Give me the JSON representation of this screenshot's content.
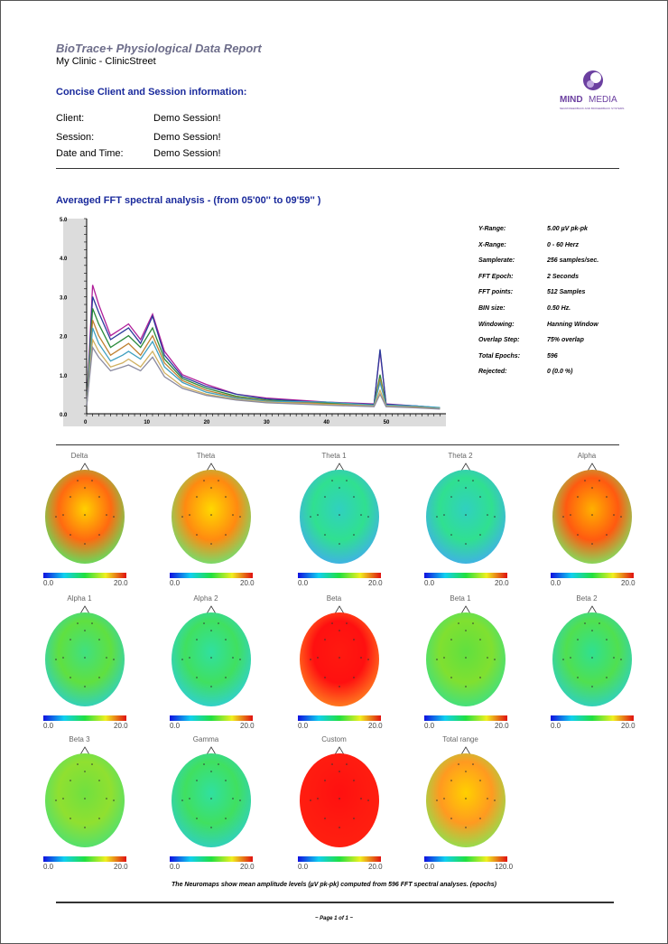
{
  "header": {
    "report_title": "BioTrace+ Physiological Data Report",
    "clinic": "My Clinic - ClinicStreet",
    "section_title": "Concise Client and Session information:"
  },
  "logo": {
    "text_bold": "MIND",
    "text_light": "MEDIA",
    "tagline": "NEUROFEEDBACK AND BIOFEEDBACK SYSTEMS",
    "color": "#6b3fa0"
  },
  "session_info": [
    {
      "label": "Client:",
      "value": "Demo Session!"
    },
    {
      "label": "Session:",
      "value": "Demo Session!"
    },
    {
      "label": "Date and Time:",
      "value": "Demo Session!"
    }
  ],
  "fft": {
    "title": "Averaged FFT spectral analysis - (from  05'00''  to  09'59'' )",
    "stats": [
      {
        "label": "Y-Range:",
        "value": "5.00 µV pk-pk"
      },
      {
        "label": "X-Range:",
        "value": "0 - 60 Herz"
      },
      {
        "label": "Samplerate:",
        "value": "256 samples/sec."
      },
      {
        "label": "FFT Epoch:",
        "value": "2 Seconds"
      },
      {
        "label": "FFT points:",
        "value": "512 Samples"
      },
      {
        "label": "BIN size:",
        "value": "0.50 Hz."
      },
      {
        "label": "Windowing:",
        "value": "Hanning  Window"
      },
      {
        "label": "Overlap Step:",
        "value": "75% overlap"
      },
      {
        "label": "Total Epochs:",
        "value": "596"
      },
      {
        "label": "Rejected:",
        "value": "0  (0.0 %)"
      }
    ]
  },
  "chart_data": {
    "type": "line",
    "xlim": [
      0,
      60
    ],
    "ylim": [
      0,
      5
    ],
    "y_ticks": [
      "0.0",
      "1.0",
      "2.0",
      "3.0",
      "4.0",
      "5.0"
    ],
    "x_ticks": [
      "0",
      "10",
      "20",
      "30",
      "40",
      "50"
    ],
    "series": [
      {
        "color": "#b0209a",
        "values": [
          [
            0,
            0.2
          ],
          [
            1,
            3.3
          ],
          [
            2,
            2.8
          ],
          [
            4,
            2.0
          ],
          [
            6,
            2.2
          ],
          [
            7,
            2.3
          ],
          [
            9,
            1.9
          ],
          [
            11,
            2.55
          ],
          [
            13,
            1.6
          ],
          [
            16,
            1.0
          ],
          [
            20,
            0.75
          ],
          [
            25,
            0.5
          ],
          [
            30,
            0.4
          ],
          [
            40,
            0.3
          ],
          [
            48,
            0.25
          ],
          [
            49,
            1.6
          ],
          [
            50,
            0.25
          ],
          [
            55,
            0.2
          ],
          [
            59,
            0.15
          ]
        ]
      },
      {
        "color": "#2a3a9a",
        "values": [
          [
            0,
            0.2
          ],
          [
            1,
            3.0
          ],
          [
            2,
            2.6
          ],
          [
            4,
            1.9
          ],
          [
            6,
            2.1
          ],
          [
            7,
            2.2
          ],
          [
            9,
            1.8
          ],
          [
            11,
            2.5
          ],
          [
            13,
            1.5
          ],
          [
            16,
            0.95
          ],
          [
            20,
            0.7
          ],
          [
            25,
            0.5
          ],
          [
            30,
            0.38
          ],
          [
            40,
            0.28
          ],
          [
            48,
            0.24
          ],
          [
            49,
            1.65
          ],
          [
            50,
            0.24
          ],
          [
            55,
            0.2
          ],
          [
            59,
            0.15
          ]
        ]
      },
      {
        "color": "#2a8a3a",
        "values": [
          [
            0,
            0.2
          ],
          [
            1,
            2.7
          ],
          [
            2,
            2.3
          ],
          [
            4,
            1.7
          ],
          [
            6,
            1.9
          ],
          [
            7,
            2.0
          ],
          [
            9,
            1.7
          ],
          [
            11,
            2.2
          ],
          [
            13,
            1.4
          ],
          [
            16,
            0.9
          ],
          [
            20,
            0.65
          ],
          [
            25,
            0.45
          ],
          [
            30,
            0.35
          ],
          [
            40,
            0.27
          ],
          [
            48,
            0.22
          ],
          [
            49,
            1.0
          ],
          [
            50,
            0.22
          ],
          [
            55,
            0.18
          ],
          [
            59,
            0.14
          ]
        ]
      },
      {
        "color": "#c08030",
        "values": [
          [
            0,
            0.2
          ],
          [
            1,
            2.4
          ],
          [
            2,
            2.0
          ],
          [
            4,
            1.5
          ],
          [
            6,
            1.7
          ],
          [
            7,
            1.8
          ],
          [
            9,
            1.5
          ],
          [
            11,
            2.0
          ],
          [
            13,
            1.3
          ],
          [
            16,
            0.85
          ],
          [
            20,
            0.6
          ],
          [
            25,
            0.42
          ],
          [
            30,
            0.33
          ],
          [
            40,
            0.25
          ],
          [
            48,
            0.2
          ],
          [
            49,
            0.9
          ],
          [
            50,
            0.2
          ],
          [
            55,
            0.17
          ],
          [
            59,
            0.13
          ]
        ]
      },
      {
        "color": "#40a0c0",
        "values": [
          [
            0,
            0.2
          ],
          [
            1,
            2.2
          ],
          [
            2,
            1.8
          ],
          [
            4,
            1.35
          ],
          [
            6,
            1.5
          ],
          [
            7,
            1.6
          ],
          [
            9,
            1.4
          ],
          [
            11,
            1.85
          ],
          [
            13,
            1.2
          ],
          [
            16,
            0.8
          ],
          [
            20,
            0.55
          ],
          [
            25,
            0.4
          ],
          [
            30,
            0.32
          ],
          [
            40,
            0.3
          ],
          [
            48,
            0.22
          ],
          [
            49,
            0.8
          ],
          [
            50,
            0.22
          ],
          [
            55,
            0.2
          ],
          [
            59,
            0.16
          ]
        ]
      },
      {
        "color": "#d0b060",
        "values": [
          [
            0,
            0.2
          ],
          [
            1,
            1.9
          ],
          [
            2,
            1.6
          ],
          [
            4,
            1.2
          ],
          [
            6,
            1.3
          ],
          [
            7,
            1.4
          ],
          [
            9,
            1.2
          ],
          [
            11,
            1.6
          ],
          [
            13,
            1.05
          ],
          [
            16,
            0.7
          ],
          [
            20,
            0.5
          ],
          [
            25,
            0.37
          ],
          [
            30,
            0.3
          ],
          [
            40,
            0.24
          ],
          [
            48,
            0.2
          ],
          [
            49,
            0.6
          ],
          [
            50,
            0.2
          ],
          [
            55,
            0.16
          ],
          [
            59,
            0.13
          ]
        ]
      },
      {
        "color": "#8a8aa0",
        "values": [
          [
            0,
            0.2
          ],
          [
            1,
            1.7
          ],
          [
            2,
            1.45
          ],
          [
            4,
            1.1
          ],
          [
            6,
            1.2
          ],
          [
            7,
            1.25
          ],
          [
            9,
            1.1
          ],
          [
            11,
            1.45
          ],
          [
            13,
            0.95
          ],
          [
            16,
            0.65
          ],
          [
            20,
            0.47
          ],
          [
            25,
            0.35
          ],
          [
            30,
            0.28
          ],
          [
            40,
            0.22
          ],
          [
            48,
            0.18
          ],
          [
            49,
            0.5
          ],
          [
            50,
            0.18
          ],
          [
            55,
            0.15
          ],
          [
            59,
            0.12
          ]
        ]
      }
    ]
  },
  "neuromaps": [
    {
      "title": "Delta",
      "min": "0.0",
      "max": "20.0",
      "fill": "#ff6a10",
      "mid": "#ffd000",
      "edge": "#60e060"
    },
    {
      "title": "Theta",
      "min": "0.0",
      "max": "20.0",
      "fill": "#ff8a10",
      "mid": "#ffd800",
      "edge": "#70e070"
    },
    {
      "title": "Theta 1",
      "min": "0.0",
      "max": "20.0",
      "fill": "#30e090",
      "mid": "#30d0c0",
      "edge": "#40b0e8"
    },
    {
      "title": "Theta 2",
      "min": "0.0",
      "max": "20.0",
      "fill": "#30e090",
      "mid": "#30d0c0",
      "edge": "#40b0e8"
    },
    {
      "title": "Alpha",
      "min": "0.0",
      "max": "20.0",
      "fill": "#ff5a10",
      "mid": "#ffb000",
      "edge": "#80e060"
    },
    {
      "title": "Alpha 1",
      "min": "0.0",
      "max": "20.0",
      "fill": "#60e040",
      "mid": "#40e080",
      "edge": "#30d0c0"
    },
    {
      "title": "Alpha 2",
      "min": "0.0",
      "max": "20.0",
      "fill": "#40e060",
      "mid": "#30e0a0",
      "edge": "#30d0d0"
    },
    {
      "title": "Beta",
      "min": "0.0",
      "max": "20.0",
      "fill": "#ff1010",
      "mid": "#ff1a10",
      "edge": "#ff8020"
    },
    {
      "title": "Beta 1",
      "min": "0.0",
      "max": "20.0",
      "fill": "#80e030",
      "mid": "#60e040",
      "edge": "#40e080"
    },
    {
      "title": "Beta 2",
      "min": "0.0",
      "max": "20.0",
      "fill": "#50e050",
      "mid": "#30e090",
      "edge": "#30d0c0"
    },
    {
      "title": "Beta 3",
      "min": "0.0",
      "max": "20.0",
      "fill": "#90e030",
      "mid": "#70e040",
      "edge": "#50e070"
    },
    {
      "title": "Gamma",
      "min": "0.0",
      "max": "20.0",
      "fill": "#40e060",
      "mid": "#30e0a0",
      "edge": "#30d0c0"
    },
    {
      "title": "Custom",
      "min": "0.0",
      "max": "20.0",
      "fill": "#ff1a10",
      "mid": "#ff1010",
      "edge": "#ff2010"
    },
    {
      "title": "Total range",
      "min": "0.0",
      "max": "120.0",
      "fill": "#ff9a20",
      "mid": "#ffd000",
      "edge": "#90e050"
    }
  ],
  "footer": {
    "note": "The Neuromaps show mean amplitude levels (µV pk-pk) computed from 596 FFT spectral analyses. (epochs)",
    "page": "~ Page 1 of 1 ~"
  }
}
